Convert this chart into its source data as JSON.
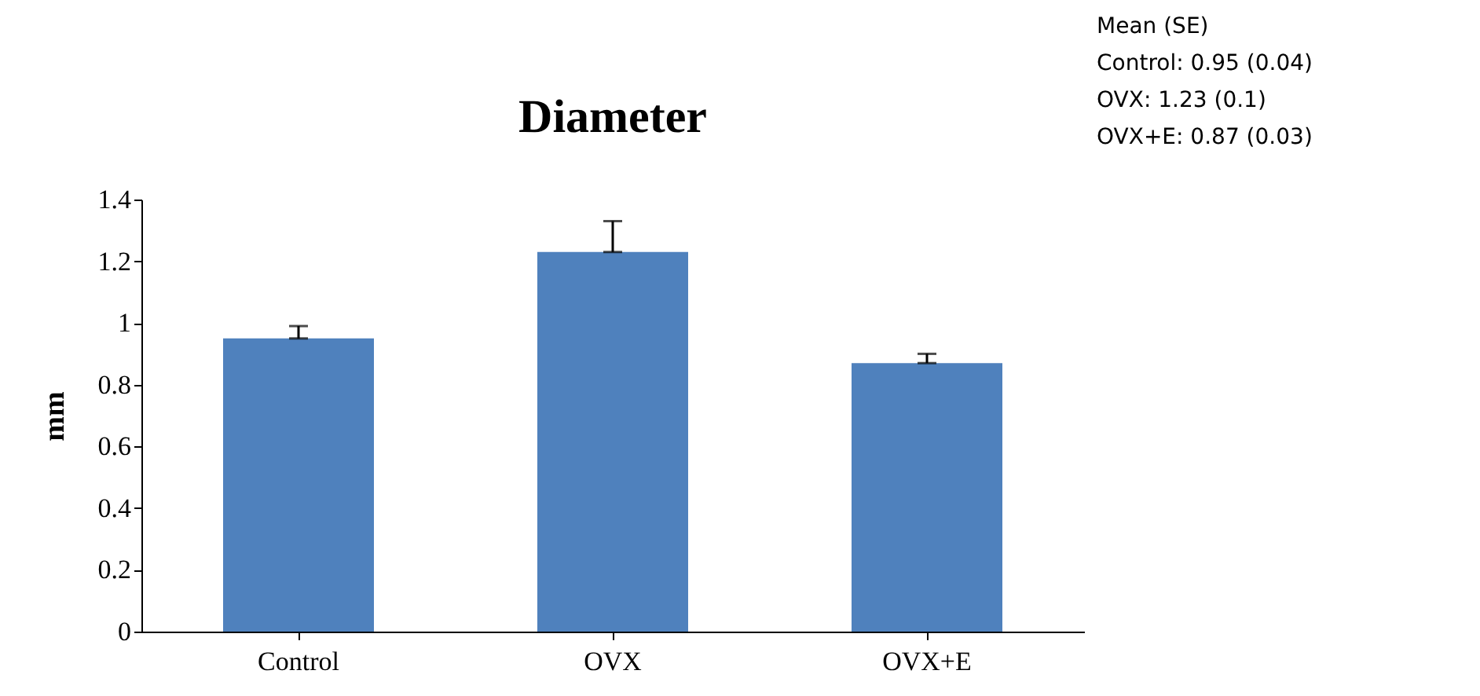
{
  "chart_data": {
    "type": "bar",
    "title": "Diameter",
    "ylabel": "mm",
    "categories": [
      "Control",
      "OVX",
      "OVX+E"
    ],
    "values": [
      0.95,
      1.23,
      0.87
    ],
    "errors": [
      [
        0.95,
        0.99
      ],
      [
        1.23,
        1.33
      ],
      [
        0.87,
        0.9
      ]
    ],
    "color": "#4f81bd",
    "ylim": [
      0,
      1.4
    ],
    "yticks": [
      0,
      0.2,
      0.4,
      0.6,
      0.8,
      1,
      1.2,
      1.4
    ],
    "grid": false,
    "annotations": [
      "Mean (SE)",
      "Control: 0.95 (0.04)",
      "OVX: 1.23 (0.1)",
      "OVX+E: 0.87 (0.03)"
    ]
  }
}
